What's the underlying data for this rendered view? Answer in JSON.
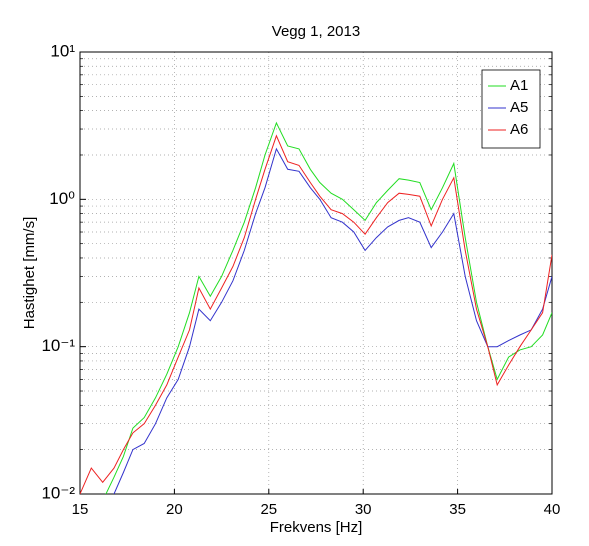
{
  "chart_data": {
    "type": "line",
    "title": "Vegg 1, 2013",
    "xlabel": "Frekvens [Hz]",
    "ylabel": "Hastighet [mm/s]",
    "x": [
      15,
      15.6,
      16.2,
      16.8,
      17.3,
      17.8,
      18.4,
      19,
      19.6,
      20.2,
      20.8,
      21.3,
      21.9,
      22.5,
      23.1,
      23.7,
      24.3,
      24.8,
      25.4,
      26,
      26.6,
      27.2,
      27.7,
      28.3,
      28.9,
      29.5,
      30.1,
      30.7,
      31.3,
      31.9,
      32.4,
      33,
      33.6,
      34.2,
      34.8,
      35.4,
      36,
      36.6,
      37.1,
      37.7,
      38.3,
      38.9,
      39.5,
      40
    ],
    "series": [
      {
        "name": "A1",
        "color": "#22dd22",
        "values": [
          null,
          null,
          0.009,
          0.013,
          0.018,
          0.028,
          0.033,
          0.045,
          0.065,
          0.1,
          0.17,
          0.3,
          0.22,
          0.3,
          0.45,
          0.7,
          1.2,
          2.0,
          3.3,
          2.3,
          2.2,
          1.6,
          1.3,
          1.1,
          1.0,
          0.85,
          0.72,
          0.95,
          1.15,
          1.38,
          1.35,
          1.3,
          0.85,
          1.2,
          1.75,
          0.55,
          0.2,
          0.1,
          0.06,
          0.085,
          0.095,
          0.1,
          0.12,
          0.17
        ]
      },
      {
        "name": "A5",
        "color": "#3333cc",
        "values": [
          null,
          null,
          0.008,
          0.01,
          0.014,
          0.02,
          0.022,
          0.03,
          0.045,
          0.06,
          0.1,
          0.18,
          0.15,
          0.2,
          0.28,
          0.45,
          0.8,
          1.2,
          2.2,
          1.6,
          1.55,
          1.2,
          1.0,
          0.75,
          0.7,
          0.6,
          0.45,
          0.55,
          0.65,
          0.72,
          0.75,
          0.7,
          0.47,
          0.6,
          0.8,
          0.3,
          0.15,
          0.1,
          0.1,
          0.11,
          0.12,
          0.13,
          0.18,
          0.3
        ]
      },
      {
        "name": "A6",
        "color": "#ee2222",
        "values": [
          0.01,
          0.015,
          0.012,
          0.015,
          0.02,
          0.026,
          0.03,
          0.04,
          0.055,
          0.085,
          0.13,
          0.25,
          0.18,
          0.25,
          0.35,
          0.55,
          1.0,
          1.6,
          2.7,
          1.8,
          1.7,
          1.3,
          1.05,
          0.85,
          0.8,
          0.7,
          0.58,
          0.75,
          0.95,
          1.1,
          1.08,
          1.05,
          0.66,
          1.0,
          1.4,
          0.45,
          0.18,
          0.1,
          0.055,
          0.075,
          0.1,
          0.13,
          0.17,
          0.42
        ]
      }
    ],
    "xlim": [
      15,
      40
    ],
    "xticks": [
      15,
      20,
      25,
      30,
      35,
      40
    ],
    "ylim": [
      0.01,
      10
    ],
    "yscale": "log",
    "yticks": [
      {
        "value": 0.01,
        "label": "10⁻²"
      },
      {
        "value": 0.1,
        "label": "10⁻¹"
      },
      {
        "value": 1,
        "label": "10⁰"
      },
      {
        "value": 10,
        "label": "10¹"
      }
    ],
    "grid": true,
    "legend": "upper right"
  }
}
